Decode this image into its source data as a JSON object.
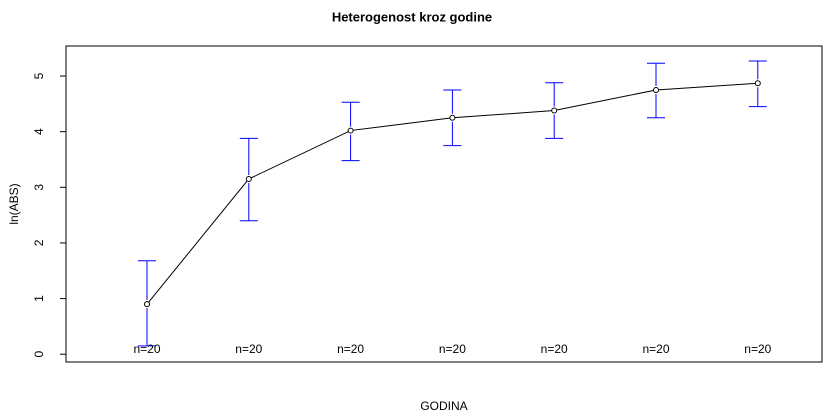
{
  "chart_data": {
    "type": "errorbar-line",
    "title": "Heterogenost kroz godine",
    "x_label": "GODINA",
    "y_label": "ln(ABS)",
    "categories": [
      null,
      null,
      null,
      null,
      null,
      null,
      null
    ],
    "values": [
      0.9,
      3.15,
      4.02,
      4.25,
      4.38,
      4.75,
      4.87
    ],
    "lower": [
      0.15,
      2.4,
      3.48,
      3.75,
      3.88,
      4.25,
      4.45
    ],
    "upper": [
      1.68,
      3.88,
      4.53,
      4.75,
      4.88,
      5.23,
      5.27
    ],
    "n_labels": [
      "n=20",
      "n=20",
      "n=20",
      "n=20",
      "n=20",
      "n=20",
      "n=20"
    ],
    "line_color": "#000000",
    "error_color": "#0000ff",
    "ylim": [
      -0.14,
      5.54
    ],
    "yticks": [
      0,
      1,
      2,
      3,
      4,
      5
    ]
  }
}
